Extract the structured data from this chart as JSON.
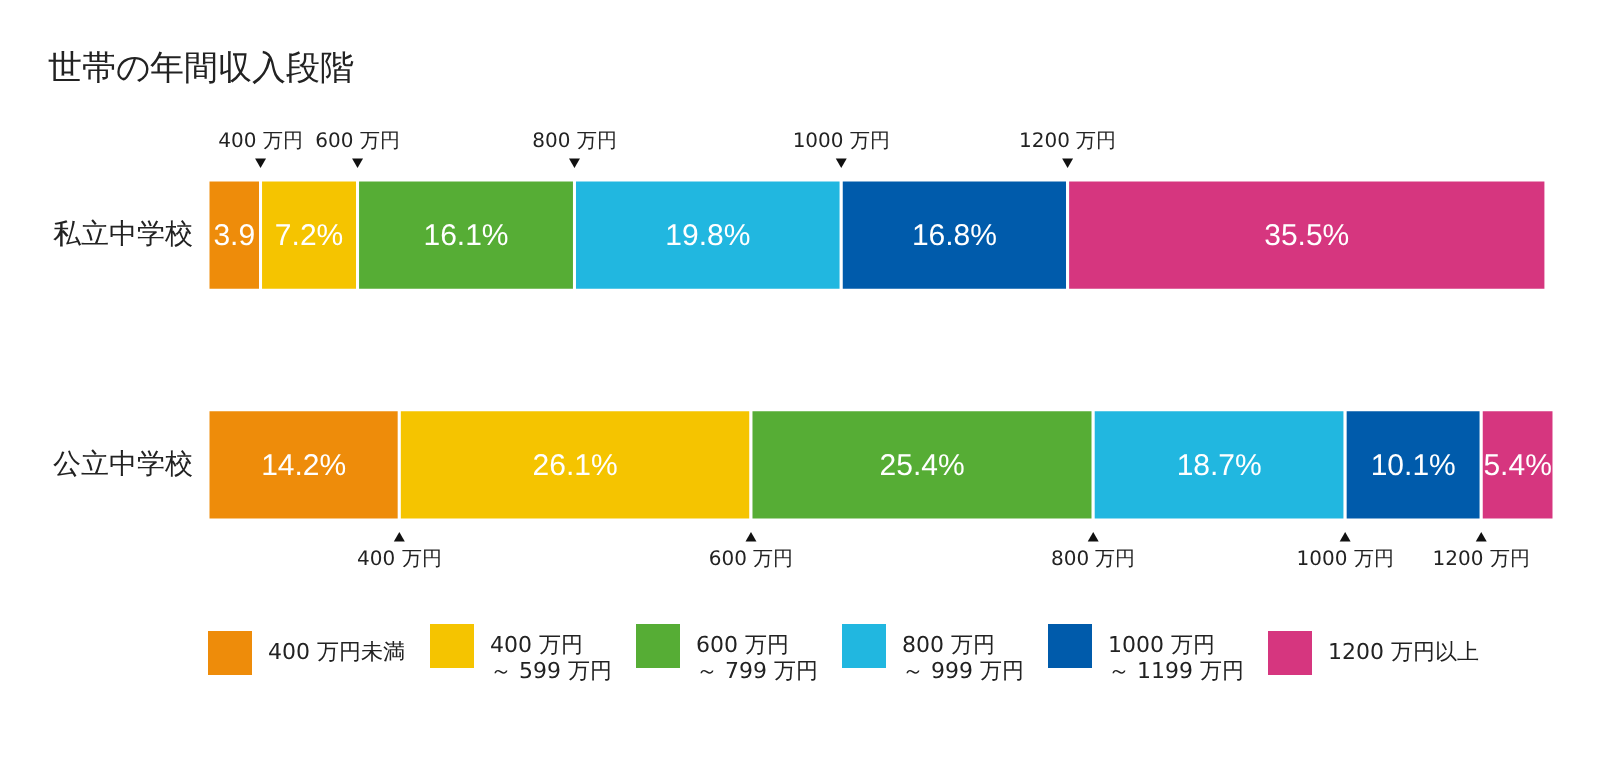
{
  "chart_data": {
    "type": "bar",
    "orientation": "horizontal",
    "stacked": true,
    "title": "世帯の年間収入段階",
    "categories": [
      "私立中学校",
      "公立中学校"
    ],
    "series": [
      {
        "name": "400 万円未満",
        "color": "#ee8c0a",
        "values": [
          3.9,
          14.2
        ],
        "value_labels": [
          "3.9",
          "14.2%"
        ]
      },
      {
        "name": "400 万円～ 599 万円",
        "color": "#f5c400",
        "values": [
          7.2,
          26.1
        ],
        "value_labels": [
          "7.2%",
          "26.1%"
        ]
      },
      {
        "name": "600 万円～ 799 万円",
        "color": "#56ad35",
        "values": [
          16.1,
          25.4
        ],
        "value_labels": [
          "16.1%",
          "25.4%"
        ]
      },
      {
        "name": "800 万円～ 999 万円",
        "color": "#21b7e0",
        "values": [
          19.8,
          18.7
        ],
        "value_labels": [
          "19.8%",
          "18.7%"
        ]
      },
      {
        "name": "1000 万円～ 1199 万円",
        "color": "#005bab",
        "values": [
          16.8,
          10.1
        ],
        "value_labels": [
          "16.8%",
          "10.1%"
        ]
      },
      {
        "name": "1200 万円以上",
        "color": "#d6367f",
        "values": [
          35.5,
          5.4
        ],
        "value_labels": [
          "35.5%",
          "5.4%"
        ]
      }
    ],
    "legend": "bottom",
    "annotations": [
      "400 万円",
      "600 万円",
      "800 万円",
      "1000 万円",
      "1200 万円",
      "400 万円",
      "600 万円",
      "800 万円",
      "1000 万円",
      "1200 万円"
    ]
  }
}
